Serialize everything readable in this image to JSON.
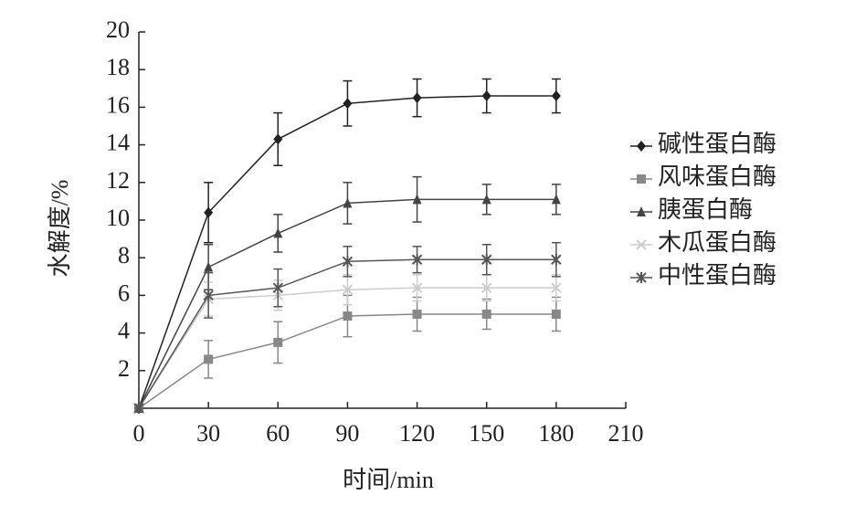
{
  "chart_data": {
    "type": "line",
    "x_label": "时间/min",
    "y_label": "水解度/%",
    "x": [
      0,
      30,
      60,
      90,
      120,
      150,
      180
    ],
    "xlim": [
      0,
      210
    ],
    "xticks": [
      0,
      30,
      60,
      90,
      120,
      150,
      180,
      210
    ],
    "ylim": [
      0,
      20
    ],
    "yticks": [
      2,
      4,
      6,
      8,
      10,
      12,
      14,
      16,
      18,
      20
    ],
    "grid": false,
    "legend": "right",
    "series": [
      {
        "name": "碱性蛋白酶",
        "color": "#222222",
        "marker": "diamond",
        "values": [
          0,
          10.4,
          14.3,
          16.2,
          16.5,
          16.6,
          16.6
        ],
        "errors": [
          0,
          1.6,
          1.4,
          1.2,
          1.0,
          0.9,
          0.9
        ]
      },
      {
        "name": "风味蛋白酶",
        "color": "#888888",
        "marker": "square",
        "values": [
          0,
          2.6,
          3.5,
          4.9,
          5.0,
          5.0,
          5.0
        ],
        "errors": [
          0,
          1.0,
          1.1,
          1.1,
          0.9,
          0.8,
          0.9
        ]
      },
      {
        "name": "胰蛋白酶",
        "color": "#444444",
        "marker": "triangle",
        "values": [
          0,
          7.5,
          9.3,
          10.9,
          11.1,
          11.1,
          11.1
        ],
        "errors": [
          0,
          1.2,
          1.0,
          1.1,
          1.2,
          0.8,
          0.8
        ]
      },
      {
        "name": "木瓜蛋白酶",
        "color": "#cccccc",
        "marker": "cross",
        "values": [
          0,
          5.8,
          6.0,
          6.3,
          6.4,
          6.4,
          6.4
        ],
        "errors": [
          0,
          0.9,
          0.8,
          0.8,
          0.7,
          0.7,
          0.7
        ]
      },
      {
        "name": "中性蛋白酶",
        "color": "#555555",
        "marker": "star",
        "values": [
          0,
          6.0,
          6.4,
          7.8,
          7.9,
          7.9,
          7.9
        ],
        "errors": [
          0,
          1.2,
          1.0,
          0.8,
          0.7,
          0.8,
          0.9
        ]
      }
    ]
  }
}
